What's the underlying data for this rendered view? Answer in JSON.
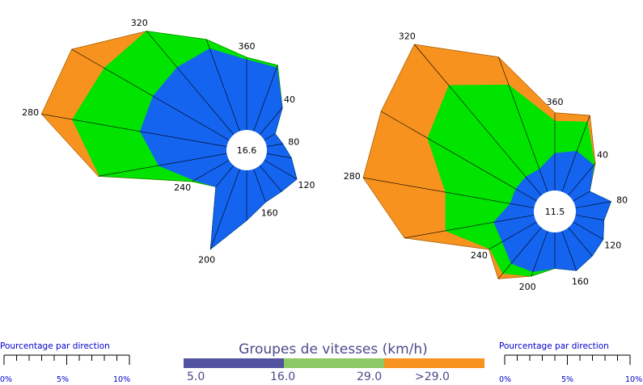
{
  "colors": {
    "band1": "#1464f0",
    "band2": "#00e400",
    "band3": "#f7921e",
    "legend1": "#5252a0",
    "legend2": "#8cc864",
    "legend3": "#f7921e",
    "scale": "#0000cc"
  },
  "chart_data": [
    {
      "type": "wind-rose",
      "center_label": "16.6",
      "directions_deg": [
        0,
        20,
        40,
        60,
        80,
        100,
        120,
        140,
        160,
        180,
        200,
        220,
        240,
        260,
        280,
        300,
        320,
        340
      ],
      "cumulative_percent": {
        "band1": [
          5.6,
          5.4,
          2.8,
          1.0,
          1.3,
          2.0,
          3.0,
          2.7,
          2.8,
          4.0,
          6.8,
          2.2,
          3.2,
          5.5,
          7.0,
          7.0,
          7.0,
          7.0
        ],
        "band2": [
          5.8,
          5.6,
          2.8,
          1.0,
          1.3,
          2.0,
          3.0,
          2.7,
          2.8,
          4.0,
          6.8,
          2.2,
          3.4,
          10.3,
          12.5,
          11.5,
          10.8,
          7.8
        ],
        "band3": [
          5.8,
          5.6,
          2.8,
          1.0,
          1.3,
          2.0,
          3.0,
          2.7,
          2.8,
          4.0,
          6.8,
          2.2,
          3.4,
          10.4,
          15.0,
          14.5,
          10.8,
          7.8
        ]
      },
      "direction_labels": [
        "360",
        "40",
        "80",
        "120",
        "160",
        "200",
        "240",
        "280",
        "320"
      ]
    },
    {
      "type": "wind-rose",
      "center_label": "11.5",
      "directions_deg": [
        0,
        20,
        40,
        60,
        80,
        100,
        120,
        140,
        160,
        180,
        200,
        220,
        240,
        260,
        280,
        300,
        320,
        340
      ],
      "cumulative_percent": {
        "band1": [
          3.1,
          3.6,
          3.3,
          1.6,
          3.0,
          2.4,
          2.9,
          3.1,
          3.5,
          3.0,
          3.6,
          3.9,
          3.3,
          3.4,
          2.0,
          2.0,
          2.0,
          2.0
        ],
        "band2": [
          5.8,
          6.2,
          3.4,
          1.6,
          3.0,
          2.4,
          2.9,
          3.1,
          3.5,
          3.0,
          4.0,
          5.0,
          4.5,
          7.5,
          7.5,
          10.5,
          12.0,
          9.5
        ],
        "band3": [
          6.5,
          6.8,
          3.5,
          1.6,
          3.0,
          2.4,
          2.9,
          3.1,
          3.5,
          3.0,
          4.0,
          5.6,
          4.6,
          11.0,
          14.5,
          15.0,
          16.5,
          12.0
        ]
      },
      "direction_labels": [
        "360",
        "40",
        "80",
        "120",
        "160",
        "200",
        "240",
        "280",
        "320"
      ]
    }
  ],
  "scale_left": {
    "title": "Pourcentage par direction",
    "ticks": [
      "0%",
      "5%",
      "10%"
    ]
  },
  "scale_right": {
    "title": "Pourcentage par direction",
    "ticks": [
      "0%",
      "5%",
      "10%"
    ]
  },
  "legend": {
    "title": "Groupes de vitesses (km/h)",
    "labels": [
      "5.0",
      "16.0",
      "29.0",
      ">29.0"
    ]
  }
}
